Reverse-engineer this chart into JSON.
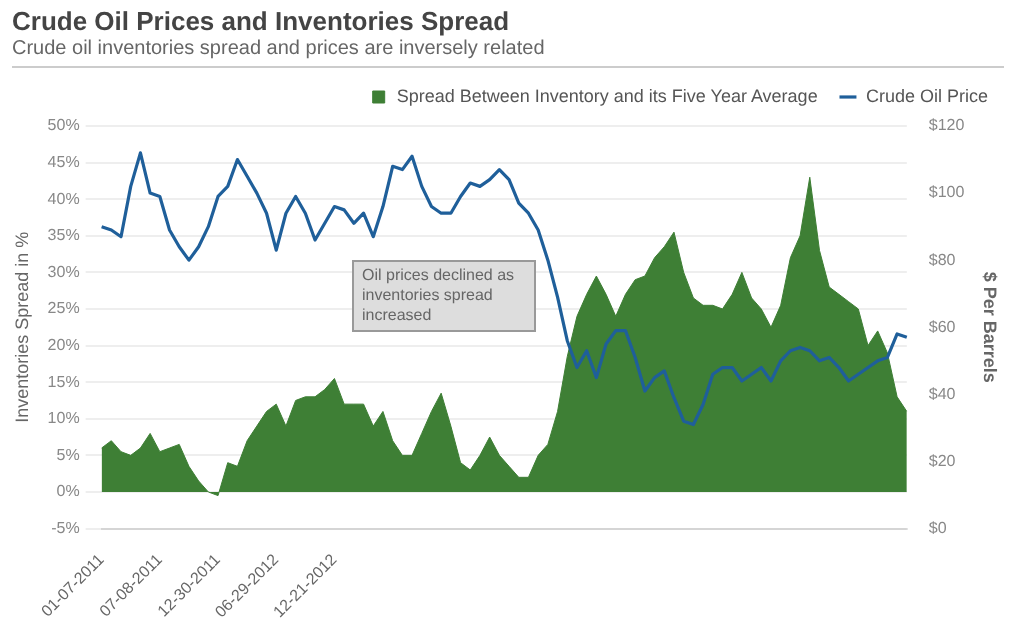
{
  "chart_data": {
    "type": "area",
    "title": "Crude Oil Prices and Inventories Spread",
    "subtitle": "Crude oil inventories spread and prices are inversely related",
    "ylabel": "Inventories Spread in %",
    "y2label": "$ Per Barrels",
    "categories": [
      "01-07-2011",
      null,
      null,
      null,
      null,
      null,
      "07-08-2011",
      null,
      null,
      null,
      null,
      null,
      "12-30-2011",
      null,
      null,
      null,
      null,
      null,
      "06-29-2012",
      null,
      null,
      null,
      null,
      null,
      "12-21-2012",
      null,
      null,
      null,
      null,
      null,
      null,
      null,
      null,
      null,
      null,
      null,
      null,
      null,
      null,
      null,
      null,
      null,
      null,
      null,
      null,
      null,
      null,
      null,
      null,
      null,
      null,
      null,
      null,
      null,
      null,
      null,
      null,
      null,
      null,
      null,
      null,
      null,
      null,
      null,
      null,
      null,
      null,
      null,
      null,
      null,
      null,
      null,
      null,
      null,
      null,
      null,
      null,
      null,
      null,
      null,
      null,
      null,
      null,
      null
    ],
    "series": [
      {
        "name": "Spread Between Inventory and its Five Year Average",
        "color": "#3e7f35",
        "values": [
          6,
          7,
          5.5,
          5,
          6,
          8,
          5.5,
          6,
          6.5,
          3.5,
          1.5,
          0,
          -0.5,
          4,
          3.5,
          7,
          9,
          11,
          12,
          9,
          12.5,
          13,
          13,
          14,
          15.5,
          12,
          12,
          12,
          9,
          11,
          7,
          5,
          5,
          8,
          11,
          13.5,
          9,
          4,
          3,
          5,
          7.5,
          5,
          3.5,
          2,
          2,
          5,
          6.5,
          11,
          18.5,
          24,
          27,
          29.5,
          27,
          24,
          27,
          29,
          29.5,
          32,
          33.5,
          35.5,
          30,
          26.5,
          25.5,
          25.5,
          25,
          27,
          30,
          26.5,
          25,
          22.5,
          25.5,
          32,
          35,
          43,
          33,
          28,
          27,
          26,
          25,
          20,
          22,
          19,
          13,
          11
        ]
      },
      {
        "name": "Crude Oil Price",
        "type": "line",
        "axis": "y2",
        "color": "#1f5f9a",
        "values": [
          90,
          89,
          87,
          102,
          112,
          100,
          99,
          89,
          84,
          80,
          84,
          90,
          99,
          102,
          110,
          105,
          100,
          94,
          83,
          94,
          99,
          94,
          86,
          91,
          96,
          95,
          91,
          94,
          87,
          96,
          108,
          107,
          111,
          102,
          96,
          94,
          94,
          99,
          103,
          102,
          104,
          107,
          104,
          97,
          94,
          89,
          80,
          69,
          56,
          48,
          53,
          45,
          55,
          59,
          59,
          51,
          41,
          45,
          47,
          39,
          32,
          31,
          37,
          46,
          48,
          48,
          44,
          46,
          48,
          44,
          50,
          53,
          54,
          53,
          50,
          51,
          48,
          44,
          46,
          48,
          50,
          51,
          58,
          57
        ]
      }
    ],
    "ylim": [
      -5,
      50
    ],
    "yticks": [
      {
        "value": -5,
        "label": "-5%"
      },
      {
        "value": 0,
        "label": "0%"
      },
      {
        "value": 5,
        "label": "5%"
      },
      {
        "value": 10,
        "label": "10%"
      },
      {
        "value": 15,
        "label": "15%"
      },
      {
        "value": 20,
        "label": "20%"
      },
      {
        "value": 25,
        "label": "25%"
      },
      {
        "value": 30,
        "label": "30%"
      },
      {
        "value": 35,
        "label": "35%"
      },
      {
        "value": 40,
        "label": "40%"
      },
      {
        "value": 45,
        "label": "45%"
      },
      {
        "value": 50,
        "label": "50%"
      }
    ],
    "y2lim": [
      0,
      120
    ],
    "y2ticks": [
      {
        "value": 0,
        "label": "$0"
      },
      {
        "value": 20,
        "label": "$20"
      },
      {
        "value": 40,
        "label": "$40"
      },
      {
        "value": 60,
        "label": "$60"
      },
      {
        "value": 80,
        "label": "$80"
      },
      {
        "value": 100,
        "label": "$100"
      },
      {
        "value": 120,
        "label": "$120"
      }
    ],
    "annotations": [
      "Oil prices declined as inventories spread increased"
    ],
    "grid": "y",
    "legend": "top right",
    "marker": "none",
    "line_style": "solid"
  }
}
